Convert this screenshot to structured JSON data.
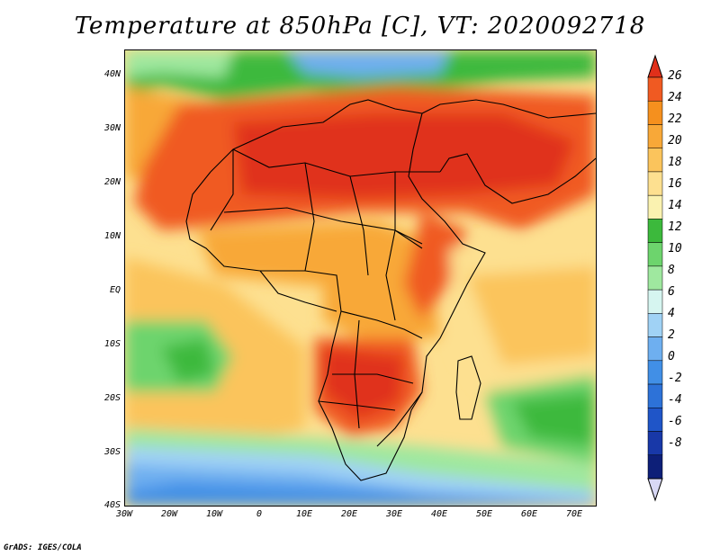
{
  "title": "Temperature at 850hPa [C], VT: 2020092718",
  "credit": "GrADS: IGES/COLA",
  "map": {
    "lon_range": [
      -30,
      75
    ],
    "lat_range": [
      -40,
      44
    ],
    "lat_ticks": [
      {
        "value": 40,
        "label": "40N"
      },
      {
        "value": 30,
        "label": "30N"
      },
      {
        "value": 20,
        "label": "20N"
      },
      {
        "value": 10,
        "label": "10N"
      },
      {
        "value": 0,
        "label": "EQ"
      },
      {
        "value": -10,
        "label": "10S"
      },
      {
        "value": -20,
        "label": "20S"
      },
      {
        "value": -30,
        "label": "30S"
      },
      {
        "value": -40,
        "label": "40S"
      }
    ],
    "lon_ticks": [
      {
        "value": -30,
        "label": "30W"
      },
      {
        "value": -20,
        "label": "20W"
      },
      {
        "value": -10,
        "label": "10W"
      },
      {
        "value": 0,
        "label": "0"
      },
      {
        "value": 10,
        "label": "10E"
      },
      {
        "value": 20,
        "label": "20E"
      },
      {
        "value": 30,
        "label": "30E"
      },
      {
        "value": 40,
        "label": "40E"
      },
      {
        "value": 50,
        "label": "50E"
      },
      {
        "value": 60,
        "label": "60E"
      },
      {
        "value": 70,
        "label": "70E"
      }
    ]
  },
  "colorbar": {
    "levels": [
      "26",
      "24",
      "22",
      "20",
      "18",
      "16",
      "14",
      "12",
      "10",
      "8",
      "6",
      "4",
      "2",
      "0",
      "-2",
      "-4",
      "-6",
      "-8"
    ],
    "colors": [
      "#e0301a",
      "#f05a22",
      "#f5901e",
      "#f8a838",
      "#fbc45c",
      "#fde090",
      "#faf2b0",
      "#3cb93c",
      "#6dd46d",
      "#9fe89f",
      "#d6f5f0",
      "#a0d2f5",
      "#6eaff0",
      "#418fe6",
      "#2d72d8",
      "#1f55c8",
      "#1838a8",
      "#0d1f78",
      "#d8d8f5"
    ]
  }
}
